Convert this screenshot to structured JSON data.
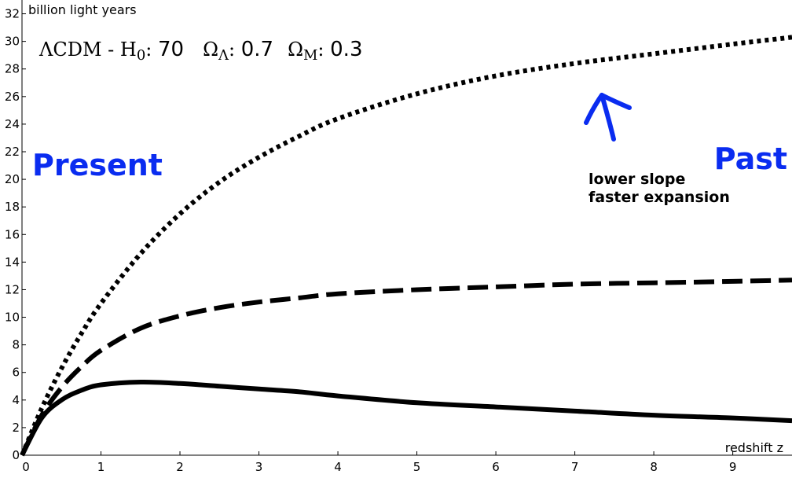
{
  "chart_data": {
    "type": "line",
    "xlabel": "redshift z",
    "ylabel": "billion light years",
    "xlim": [
      0,
      9.75
    ],
    "ylim": [
      0,
      33
    ],
    "xticks": [
      "0",
      "1",
      "2",
      "3",
      "4",
      "5",
      "6",
      "7",
      "8",
      "9"
    ],
    "yticks": [
      "0",
      "2",
      "4",
      "6",
      "8",
      "10",
      "12",
      "14",
      "16",
      "18",
      "20",
      "22",
      "24",
      "26",
      "28",
      "30",
      "32"
    ],
    "grid": false,
    "params": {
      "model": "ΛCDM",
      "h0_label": "H",
      "h0_sub": "0",
      "h0_value": "70",
      "omega_lambda_label": "Ω",
      "omega_lambda_sub": "Λ",
      "omega_lambda_value": "0.7",
      "omega_m_label": "Ω",
      "omega_m_sub": "M",
      "omega_m_value": "0.3"
    },
    "series": [
      {
        "style": "dotted",
        "x": [
          0,
          0.25,
          0.5,
          0.75,
          1,
          1.5,
          2,
          2.5,
          3,
          3.5,
          4,
          5,
          6,
          7,
          8,
          9,
          9.75
        ],
        "y": [
          0,
          3.4,
          6.3,
          8.8,
          11.0,
          14.6,
          17.5,
          19.8,
          21.6,
          23.1,
          24.4,
          26.2,
          27.5,
          28.4,
          29.1,
          29.8,
          30.3
        ]
      },
      {
        "style": "dashed",
        "x": [
          0,
          0.25,
          0.5,
          0.75,
          1,
          1.5,
          2,
          2.5,
          3,
          3.5,
          4,
          5,
          6,
          7,
          8,
          9,
          9.75
        ],
        "y": [
          0,
          2.9,
          4.9,
          6.4,
          7.6,
          9.2,
          10.1,
          10.7,
          11.1,
          11.4,
          11.7,
          12.0,
          12.2,
          12.4,
          12.5,
          12.6,
          12.7
        ]
      },
      {
        "style": "solid",
        "x": [
          0,
          0.25,
          0.5,
          0.75,
          1,
          1.5,
          2,
          2.5,
          3,
          3.5,
          4,
          5,
          6,
          7,
          8,
          9,
          9.75
        ],
        "y": [
          0,
          2.7,
          4.0,
          4.7,
          5.1,
          5.3,
          5.2,
          5.0,
          4.8,
          4.6,
          4.3,
          3.8,
          3.5,
          3.2,
          2.9,
          2.7,
          2.5
        ]
      }
    ],
    "annotations": {
      "present": "Present",
      "past": "Past",
      "note_line1": "lower slope",
      "note_line2": "faster expansion"
    },
    "colors": {
      "line": "#000000",
      "accent": "#0a2cf0"
    }
  }
}
